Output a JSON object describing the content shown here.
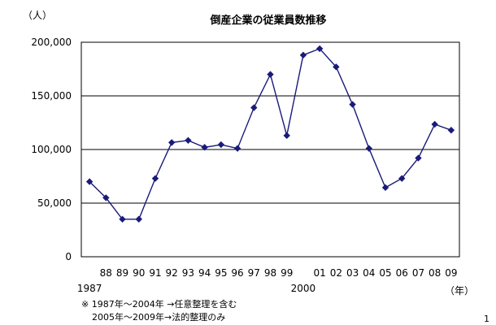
{
  "chart_data": {
    "type": "line",
    "title": "倒産企業の従業員数推移",
    "ylabel": "（人）",
    "xunit": "（年）",
    "ylim": [
      0,
      200000
    ],
    "yticks": [
      0,
      50000,
      100000,
      150000,
      200000
    ],
    "ytick_labels": [
      "0",
      "50,000",
      "100,000",
      "150,000",
      "200,000"
    ],
    "grid": true,
    "x": [
      1987,
      1988,
      1989,
      1990,
      1991,
      1992,
      1993,
      1994,
      1995,
      1996,
      1997,
      1998,
      1999,
      2000,
      2001,
      2002,
      2003,
      2004,
      2005,
      2006,
      2007,
      2008,
      2009
    ],
    "x_labels": [
      "",
      "88",
      "89",
      "90",
      "91",
      "92",
      "93",
      "94",
      "95",
      "96",
      "97",
      "98",
      "99",
      "",
      "01",
      "02",
      "03",
      "04",
      "05",
      "06",
      "07",
      "08",
      "09"
    ],
    "x_sublabels": {
      "1987": "1987",
      "2000": "2000"
    },
    "series": [
      {
        "values": [
          70000,
          55000,
          35000,
          35000,
          73000,
          106500,
          108500,
          102000,
          104500,
          101000,
          139000,
          170000,
          113000,
          188000,
          194000,
          177000,
          142000,
          101000,
          64500,
          73000,
          92000,
          123500,
          118000
        ],
        "color": "#1a1a7a"
      }
    ]
  },
  "notes": [
    "※ 1987年～2004年 →任意整理を含む",
    "2005年～2009年→法的整理のみ"
  ],
  "page_number": "1"
}
